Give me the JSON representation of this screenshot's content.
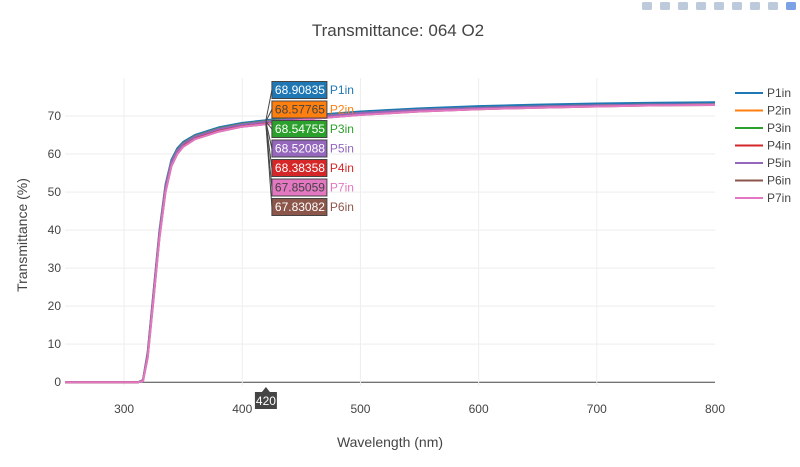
{
  "toolbar": {
    "buttons": [
      {
        "icon": "zoom-icon"
      },
      {
        "icon": "pan-icon"
      },
      {
        "icon": "zoom-in-icon"
      },
      {
        "icon": "zoom-out-icon"
      },
      {
        "icon": "autoscale-icon"
      },
      {
        "icon": "reset-axes-icon"
      },
      {
        "icon": "spike-lines-icon"
      },
      {
        "icon": "compare-data-icon"
      },
      {
        "icon": "plotly-logo-icon"
      }
    ]
  },
  "chart_data": {
    "type": "line",
    "title": "Transmittance: 064 O2",
    "xlabel": "Wavelength (nm)",
    "ylabel": "Transmittance (%)",
    "xlim": [
      250,
      800
    ],
    "ylim": [
      -1,
      80
    ],
    "xticks": [
      300,
      400,
      500,
      600,
      700,
      800
    ],
    "yticks": [
      0,
      10,
      20,
      30,
      40,
      50,
      60,
      70
    ],
    "grid": true,
    "legend_position": "right",
    "hover": {
      "x": 420,
      "x_label": "420",
      "entries": [
        {
          "series": "P1in",
          "value": "68.90835",
          "color": "#1f77b4",
          "text_color": "#ffffff"
        },
        {
          "series": "P2in",
          "value": "68.57765",
          "color": "#ff7f0e",
          "text_color": "#444444"
        },
        {
          "series": "P3in",
          "value": "68.54755",
          "color": "#2ca02c",
          "text_color": "#ffffff"
        },
        {
          "series": "P5in",
          "value": "68.52088",
          "color": "#9467bd",
          "text_color": "#ffffff"
        },
        {
          "series": "P4in",
          "value": "68.38358",
          "color": "#d62728",
          "text_color": "#ffffff"
        },
        {
          "series": "P7in",
          "value": "67.85059",
          "color": "#e377c2",
          "text_color": "#444444"
        },
        {
          "series": "P6in",
          "value": "67.83082",
          "color": "#8c564b",
          "text_color": "#ffffff"
        }
      ]
    },
    "x": [
      250,
      300,
      312,
      316,
      320,
      325,
      330,
      335,
      340,
      345,
      350,
      360,
      380,
      400,
      420,
      450,
      500,
      550,
      600,
      650,
      700,
      750,
      800
    ],
    "series": [
      {
        "name": "P1in",
        "color": "#1f77b4",
        "values": [
          0,
          0,
          0,
          0.6,
          8,
          24,
          40,
          52,
          58.5,
          61.5,
          63.2,
          65,
          67,
          68.2,
          68.91,
          70,
          71.2,
          72,
          72.6,
          73,
          73.3,
          73.5,
          73.6
        ]
      },
      {
        "name": "P2in",
        "color": "#ff7f0e",
        "values": [
          0,
          0,
          0,
          0.5,
          7.5,
          23.5,
          39.5,
          51.5,
          58,
          61,
          62.8,
          64.7,
          66.7,
          67.9,
          68.58,
          69.6,
          70.8,
          71.6,
          72.1,
          72.5,
          72.8,
          73,
          73.1
        ]
      },
      {
        "name": "P3in",
        "color": "#2ca02c",
        "values": [
          0,
          0,
          0,
          0.5,
          7.5,
          23.5,
          39.5,
          51.5,
          58,
          61,
          62.8,
          64.7,
          66.7,
          67.9,
          68.55,
          69.6,
          70.8,
          71.6,
          72.1,
          72.5,
          72.8,
          73,
          73.1
        ]
      },
      {
        "name": "P4in",
        "color": "#d62728",
        "values": [
          0,
          0,
          0,
          0.4,
          7.2,
          23,
          39,
          51,
          57.6,
          60.7,
          62.5,
          64.4,
          66.4,
          67.7,
          68.38,
          69.4,
          70.7,
          71.5,
          72,
          72.4,
          72.7,
          72.9,
          73
        ]
      },
      {
        "name": "P5in",
        "color": "#9467bd",
        "values": [
          0,
          0,
          0,
          0.5,
          7.4,
          23.4,
          39.4,
          51.4,
          57.9,
          60.9,
          62.7,
          64.6,
          66.6,
          67.8,
          68.52,
          69.5,
          70.8,
          71.6,
          72.1,
          72.5,
          72.8,
          73,
          73.1
        ]
      },
      {
        "name": "P6in",
        "color": "#8c564b",
        "values": [
          0,
          0,
          0,
          0.3,
          6.5,
          22,
          38,
          50,
          56.8,
          60,
          61.9,
          63.9,
          65.9,
          67.2,
          67.83,
          69,
          70.3,
          71.2,
          71.8,
          72.2,
          72.5,
          72.8,
          72.9
        ]
      },
      {
        "name": "P7in",
        "color": "#e377c2",
        "values": [
          0,
          0,
          0,
          0.3,
          6.5,
          22,
          38,
          50,
          56.8,
          60,
          61.9,
          63.9,
          65.9,
          67.2,
          67.85,
          69,
          70.3,
          71.2,
          71.8,
          72.2,
          72.5,
          72.8,
          72.9
        ]
      }
    ]
  }
}
